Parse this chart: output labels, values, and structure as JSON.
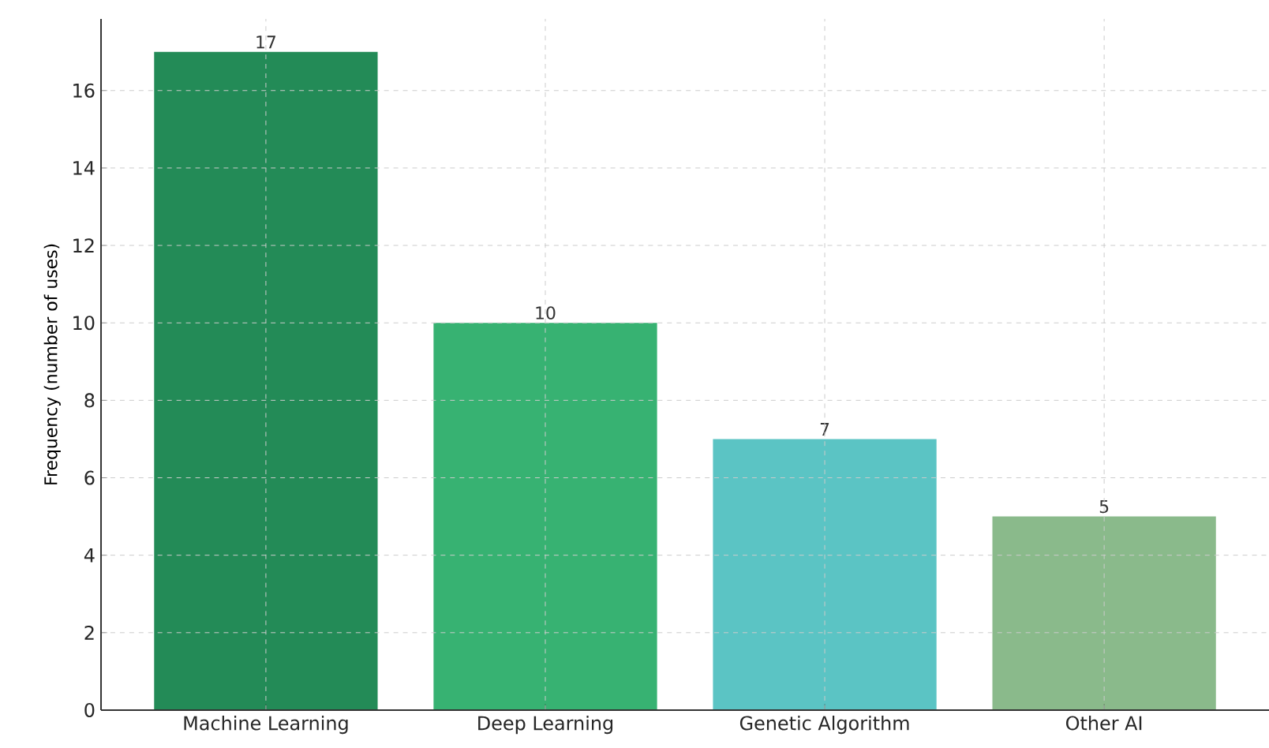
{
  "chart_data": {
    "type": "bar",
    "ylabel": "Frequency (number of uses)",
    "categories": [
      "Machine Learning",
      "Deep Learning",
      "Genetic Algorithm",
      "Other AI"
    ],
    "values": [
      17,
      10,
      7,
      5
    ],
    "colors": [
      "#238b57",
      "#37b272",
      "#5bc4c4",
      "#8aba8b"
    ],
    "ylim": [
      0,
      17.85
    ],
    "yticks": [
      0,
      2,
      4,
      6,
      8,
      10,
      12,
      14,
      16
    ],
    "grid": true,
    "data_labels": true
  }
}
